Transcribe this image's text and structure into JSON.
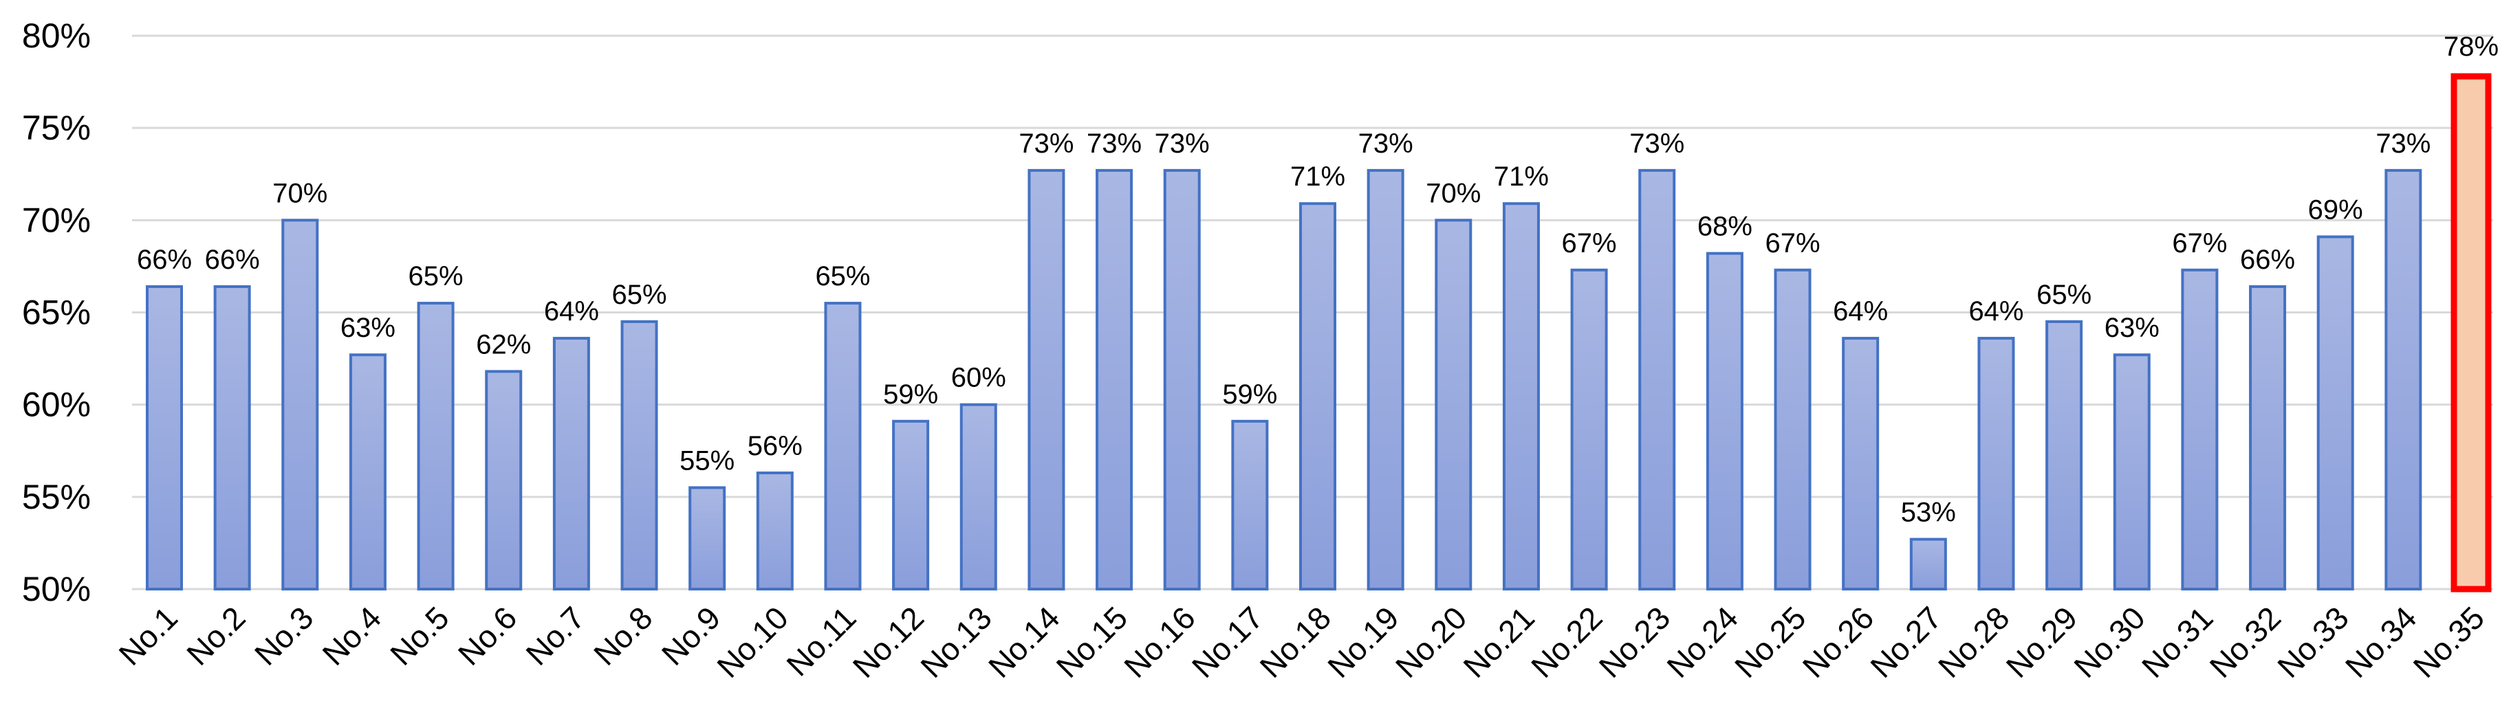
{
  "chart_data": {
    "type": "bar",
    "title": "",
    "xlabel": "",
    "ylabel": "",
    "ylim": [
      50,
      80
    ],
    "yticks": [
      50,
      55,
      60,
      65,
      70,
      75,
      80
    ],
    "ytick_labels": [
      "50%",
      "55%",
      "60%",
      "65%",
      "70%",
      "75%",
      "80%"
    ],
    "grid": true,
    "categories": [
      "No.1",
      "No.2",
      "No.3",
      "No.4",
      "No.5",
      "No.6",
      "No.7",
      "No.8",
      "No.9",
      "No.10",
      "No.11",
      "No.12",
      "No.13",
      "No.14",
      "No.15",
      "No.16",
      "No.17",
      "No.18",
      "No.19",
      "No.20",
      "No.21",
      "No.22",
      "No.23",
      "No.24",
      "No.25",
      "No.26",
      "No.27",
      "No.28",
      "No.29",
      "No.30",
      "No.31",
      "No.32",
      "No.33",
      "No.34",
      "No.35"
    ],
    "values": [
      66.4,
      66.4,
      70.0,
      62.7,
      65.5,
      61.8,
      63.6,
      64.5,
      55.5,
      56.3,
      65.5,
      59.1,
      60.0,
      72.7,
      72.7,
      72.7,
      59.1,
      70.9,
      72.7,
      70.0,
      70.9,
      67.3,
      72.7,
      68.2,
      67.3,
      63.6,
      52.7,
      63.6,
      64.5,
      62.7,
      67.3,
      66.4,
      69.1,
      72.7,
      77.8
    ],
    "data_labels": [
      "66%",
      "66%",
      "70%",
      "63%",
      "65%",
      "62%",
      "64%",
      "65%",
      "55%",
      "56%",
      "65%",
      "59%",
      "60%",
      "73%",
      "73%",
      "73%",
      "59%",
      "71%",
      "73%",
      "70%",
      "71%",
      "67%",
      "73%",
      "68%",
      "67%",
      "64%",
      "53%",
      "64%",
      "65%",
      "63%",
      "67%",
      "66%",
      "69%",
      "73%",
      "78%"
    ],
    "highlight_index": 34,
    "colors": {
      "bar_fill_top": "#a9b7e3",
      "bar_fill_bottom": "#8a9edb",
      "bar_stroke": "#4472c4",
      "highlight_fill": "#f8cbad",
      "highlight_stroke": "#ff0000"
    }
  }
}
